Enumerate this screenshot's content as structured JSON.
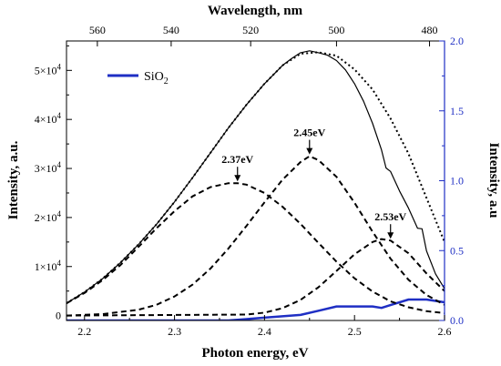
{
  "chart_data": {
    "type": "line",
    "title": "",
    "xlabel": "Photon energy, eV",
    "ylabel": "Intensity, a.u.",
    "top_xlabel": "Wavelength, nm",
    "right_ylabel": "Intensity, a.u",
    "xlim": [
      2.18,
      2.6
    ],
    "ylim": [
      -1000,
      56000
    ],
    "right_ylim": [
      0,
      2.0
    ],
    "x_ticks": [
      2.2,
      2.3,
      2.4,
      2.5,
      2.6
    ],
    "x_tick_labels": [
      "2.2",
      "2.3",
      "2.4",
      "2.5",
      "2.6"
    ],
    "y_ticks": [
      0,
      10000,
      20000,
      30000,
      40000,
      50000
    ],
    "y_tick_labels": [
      {
        "mant": "0",
        "exp": ""
      },
      {
        "mant": "1×10",
        "exp": "4"
      },
      {
        "mant": "2×10",
        "exp": "4"
      },
      {
        "mant": "3×10",
        "exp": "4"
      },
      {
        "mant": "4×10",
        "exp": "4"
      },
      {
        "mant": "5×10",
        "exp": "4"
      }
    ],
    "top_ticks_nm": [
      560,
      540,
      520,
      500,
      480
    ],
    "top_tick_labels": [
      "560",
      "540",
      "520",
      "500",
      "480"
    ],
    "right_ticks": [
      0.0,
      0.5,
      1.0,
      1.5,
      2.0
    ],
    "right_tick_labels": [
      "0.0",
      "0.5",
      "1.0",
      "1.5",
      "2.0"
    ],
    "legend": {
      "base": "SiO",
      "sub": "2",
      "position": "top-left",
      "color": "#1f2fc4"
    },
    "colors": {
      "sio2": "#1f2fc4",
      "right_axis": "#1f2fc4",
      "data": "#000000"
    },
    "series": [
      {
        "name": "SiO2",
        "axis": "right",
        "style": "solid",
        "x": [
          2.18,
          2.36,
          2.38,
          2.4,
          2.42,
          2.44,
          2.46,
          2.48,
          2.5,
          2.52,
          2.53,
          2.54,
          2.56,
          2.58,
          2.6
        ],
        "y": [
          0.0,
          0.0,
          0.01,
          0.02,
          0.03,
          0.04,
          0.07,
          0.1,
          0.1,
          0.1,
          0.09,
          0.11,
          0.15,
          0.15,
          0.13
        ]
      },
      {
        "name": "",
        "axis": "left",
        "style": "solid",
        "x": [
          2.18,
          2.2,
          2.22,
          2.24,
          2.26,
          2.28,
          2.3,
          2.32,
          2.34,
          2.36,
          2.38,
          2.4,
          2.42,
          2.43,
          2.44,
          2.45,
          2.46,
          2.47,
          2.48,
          2.49,
          2.5,
          2.51,
          2.52,
          2.53,
          2.535,
          2.54,
          2.55,
          2.56,
          2.57,
          2.575,
          2.58,
          2.59,
          2.6
        ],
        "y": [
          2500,
          4800,
          7500,
          10800,
          14500,
          18600,
          23200,
          28100,
          33200,
          38300,
          43000,
          47300,
          51000,
          52400,
          53600,
          54000,
          53600,
          53100,
          52000,
          50100,
          47300,
          43700,
          39200,
          33800,
          30100,
          29400,
          25400,
          21900,
          17800,
          17700,
          13200,
          8500,
          5500
        ]
      },
      {
        "name": "",
        "axis": "left",
        "style": "dotted",
        "x": [
          2.18,
          2.2,
          2.22,
          2.24,
          2.26,
          2.28,
          2.3,
          2.32,
          2.34,
          2.36,
          2.38,
          2.4,
          2.42,
          2.44,
          2.46,
          2.48,
          2.5,
          2.52,
          2.54,
          2.56,
          2.58,
          2.6
        ],
        "y": [
          2500,
          4800,
          7500,
          10800,
          14500,
          18600,
          23200,
          28100,
          33200,
          38300,
          43000,
          47300,
          51000,
          53400,
          53700,
          53000,
          50200,
          46100,
          40200,
          33000,
          24000,
          15000
        ]
      },
      {
        "name": "",
        "axis": "left",
        "style": "dashed",
        "x": [
          2.18,
          2.2,
          2.22,
          2.24,
          2.26,
          2.28,
          2.3,
          2.32,
          2.34,
          2.36,
          2.37,
          2.38,
          2.4,
          2.42,
          2.44,
          2.46,
          2.48,
          2.5,
          2.52,
          2.54,
          2.56,
          2.58,
          2.6
        ],
        "y": [
          2500,
          4600,
          7200,
          10300,
          14000,
          17800,
          21300,
          24300,
          26200,
          27000,
          27000,
          26700,
          25000,
          22200,
          18700,
          14800,
          11000,
          7600,
          4900,
          2900,
          1700,
          900,
          500
        ]
      },
      {
        "name": "",
        "axis": "left",
        "style": "dashed",
        "x": [
          2.18,
          2.22,
          2.26,
          2.28,
          2.3,
          2.32,
          2.34,
          2.36,
          2.38,
          2.4,
          2.42,
          2.44,
          2.45,
          2.46,
          2.48,
          2.5,
          2.52,
          2.54,
          2.56,
          2.58,
          2.6
        ],
        "y": [
          0,
          300,
          1200,
          2200,
          3900,
          6300,
          9600,
          13700,
          18300,
          23100,
          27700,
          31300,
          32500,
          31700,
          28300,
          23000,
          17100,
          11600,
          7300,
          4200,
          2200
        ]
      },
      {
        "name": "",
        "axis": "left",
        "style": "dashed",
        "x": [
          2.18,
          2.38,
          2.4,
          2.42,
          2.44,
          2.46,
          2.48,
          2.5,
          2.52,
          2.53,
          2.54,
          2.56,
          2.58,
          2.6
        ],
        "y": [
          0,
          200,
          600,
          1500,
          3200,
          5800,
          9100,
          12500,
          15000,
          15600,
          15300,
          12700,
          8600,
          5000
        ]
      }
    ],
    "annotations": [
      {
        "text": "2.37eV",
        "x": 2.37,
        "y": 27000
      },
      {
        "text": "2.45eV",
        "x": 2.45,
        "y": 32500
      },
      {
        "text": "2.53eV",
        "x": 2.54,
        "y": 15300
      }
    ]
  }
}
